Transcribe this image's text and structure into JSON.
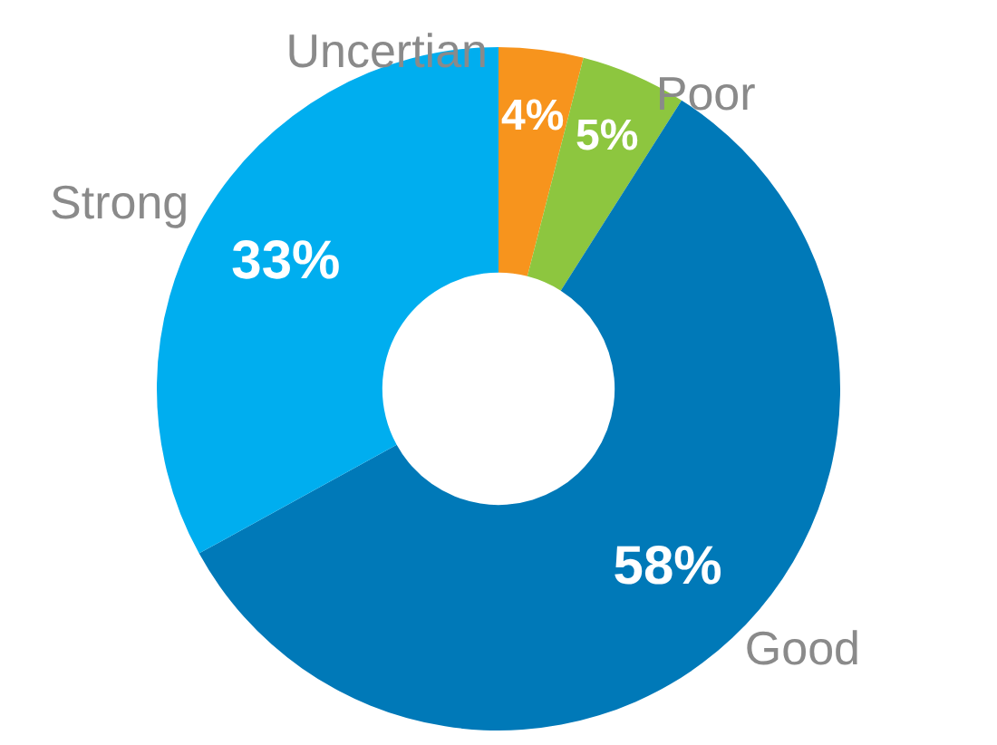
{
  "chart_data": {
    "type": "donut",
    "categories": [
      "Uncertian",
      "Poor",
      "Good",
      "Strong"
    ],
    "values": [
      4,
      5,
      58,
      33
    ],
    "value_labels": [
      "4%",
      "5%",
      "58%",
      "33%"
    ],
    "colors": [
      "#f7941d",
      "#8dc63f",
      "#0079b8",
      "#00aeef"
    ],
    "legend": false
  }
}
